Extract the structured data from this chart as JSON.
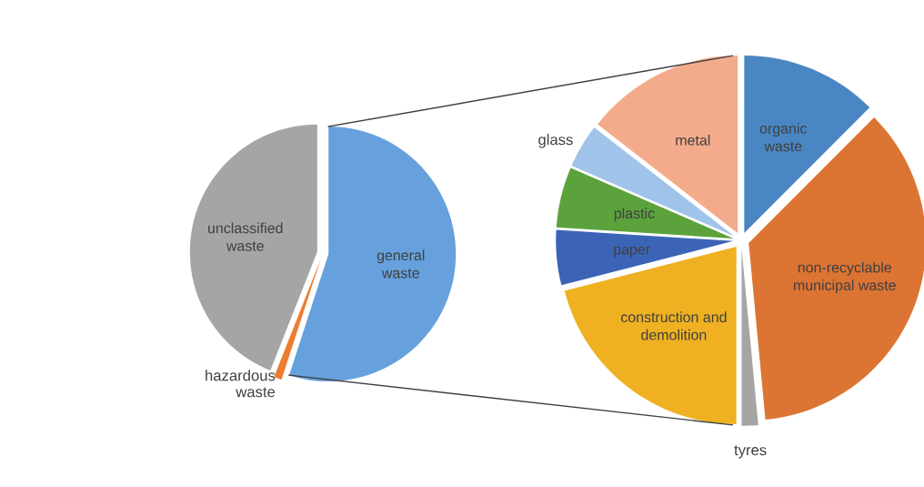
{
  "chart_data": [
    {
      "type": "pie",
      "categories": [
        "general\nwaste",
        "hazardous\nwaste",
        "unclassified\nwaste"
      ],
      "values": [
        55,
        1,
        44
      ],
      "colors": [
        "#66a1dd",
        "#ed7d31",
        "#a5a5a5"
      ]
    },
    {
      "type": "pie",
      "categories": [
        "organic\nwaste",
        "non-recyclable\nmunicipal waste",
        "tyres",
        "construction and\ndemolition",
        "paper",
        "plastic",
        "glass",
        "metal"
      ],
      "values": [
        12.5,
        36,
        1.5,
        21,
        5,
        5.5,
        4,
        14.5
      ],
      "colors": [
        "#4a86c3",
        "#dc7433",
        "#a5a5a5",
        "#efb121",
        "#3b64b6",
        "#5ba23c",
        "#a0c4e9",
        "#f4ab8b"
      ]
    }
  ]
}
